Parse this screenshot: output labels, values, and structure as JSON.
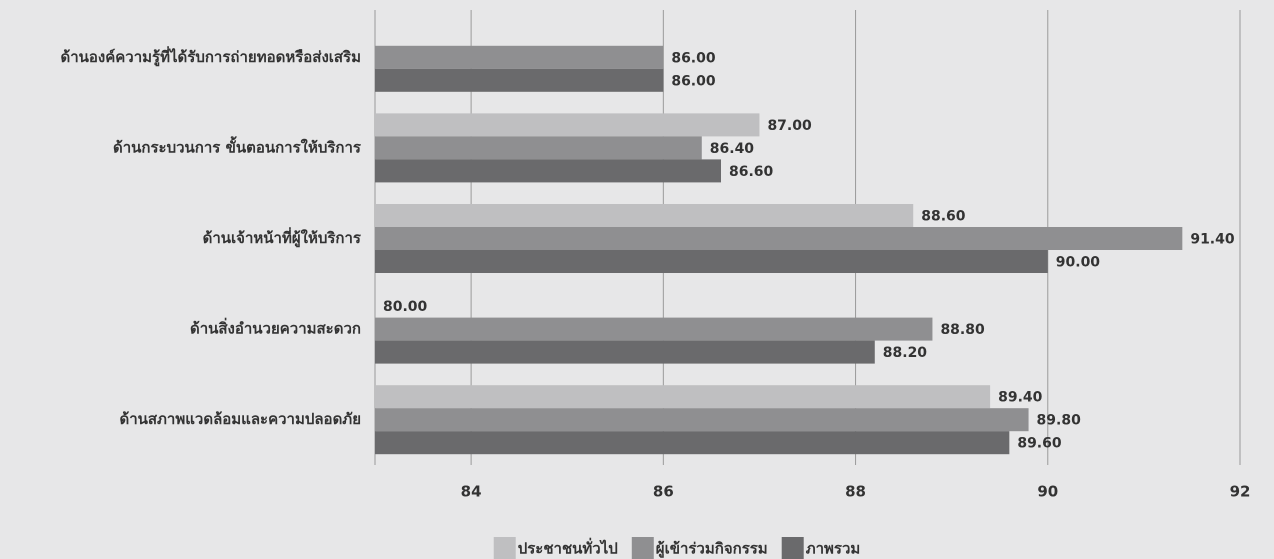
{
  "chart_data": {
    "type": "bar",
    "orientation": "horizontal",
    "categories": [
      "ด้านองค์ความรู้ที่ได้รับการถ่ายทอดหรือส่งเสริม",
      "ด้านกระบวนการ ขั้นตอนการให้บริการ",
      "ด้านเจ้าหน้าที่ผู้ให้บริการ",
      "ด้านสิ่งอำนวยความสะดวก",
      "ด้านสภาพแวดล้อมและความปลอดภัย"
    ],
    "series": [
      {
        "name": "ประชาชนทั่วไป",
        "color": "#bfbfc1",
        "values": [
          null,
          87,
          88.6,
          80,
          89.4
        ],
        "value_labels": [
          null,
          "87.00",
          "88.60",
          "80.00",
          "89.40"
        ]
      },
      {
        "name": "ผู้เข้าร่วมกิจกรรม",
        "color": "#8f8f91",
        "values": [
          86,
          86.4,
          91.4,
          88.8,
          89.8
        ],
        "value_labels": [
          "86.00",
          "86.40",
          "91.40",
          "88.80",
          "89.80"
        ]
      },
      {
        "name": "ภาพรวม",
        "color": "#6a6a6c",
        "values": [
          86,
          86.6,
          90,
          88.2,
          89.6
        ],
        "value_labels": [
          "86.00",
          "86.60",
          "90.00",
          "88.20",
          "89.60"
        ]
      }
    ],
    "xlim": [
      83,
      92
    ],
    "xticks": [
      84,
      86,
      88,
      90,
      92
    ],
    "grid": true,
    "legend": "bottom"
  }
}
